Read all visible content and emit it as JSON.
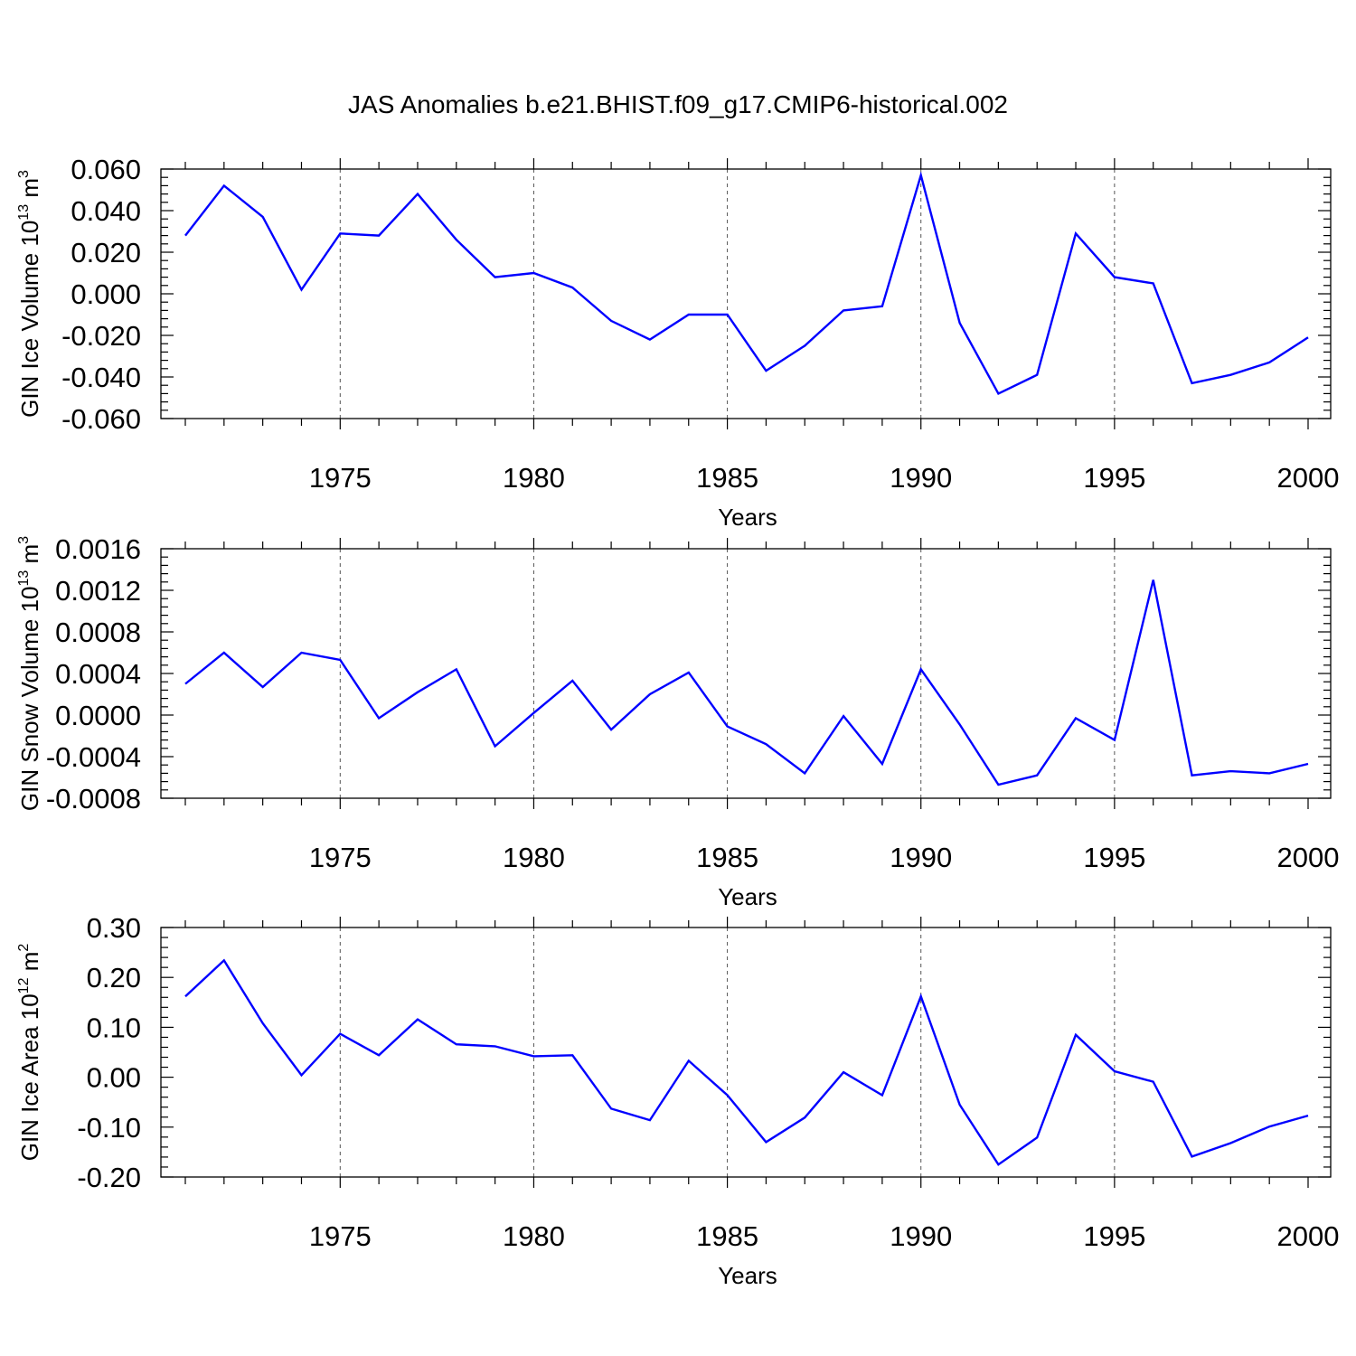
{
  "chart_data": {
    "title": "JAS Anomalies b.e21.BHIST.f09_g17.CMIP6-historical.002",
    "colors": {
      "line": "#0000ff",
      "axes": "#000000",
      "grid": "#555555"
    },
    "panels": [
      {
        "type": "line",
        "xlabel": "Years",
        "ylabel_main": "GIN Ice Volume 10",
        "ylabel_exp": "13",
        "ylabel_unit": " m",
        "ylabel_unit_exp": "3",
        "xlim": [
          1971,
          2000
        ],
        "ylim": [
          -0.06,
          0.06
        ],
        "yticks": [
          -0.06,
          -0.04,
          -0.02,
          0.0,
          0.02,
          0.04,
          0.06
        ],
        "ytick_labels": [
          "-0.060",
          "-0.040",
          "-0.020",
          "0.000",
          "0.020",
          "0.040",
          "0.060"
        ],
        "xticks": [
          1975,
          1980,
          1985,
          1990,
          1995,
          2000
        ],
        "xtick_labels": [
          "1975",
          "1980",
          "1985",
          "1990",
          "1995",
          "2000"
        ],
        "grid": "vertical dashed at major x ticks",
        "series": [
          {
            "x": [
              1971,
              1972,
              1973,
              1974,
              1975,
              1976,
              1977,
              1978,
              1979,
              1980,
              1981,
              1982,
              1983,
              1984,
              1985,
              1986,
              1987,
              1988,
              1989,
              1990,
              1991,
              1992,
              1993,
              1994,
              1995,
              1996,
              1997,
              1998,
              1999,
              2000
            ],
            "values": [
              0.028,
              0.052,
              0.037,
              0.002,
              0.029,
              0.028,
              0.048,
              0.026,
              0.008,
              0.01,
              0.003,
              -0.013,
              -0.022,
              -0.01,
              -0.01,
              -0.037,
              -0.025,
              -0.008,
              -0.006,
              0.057,
              -0.014,
              -0.048,
              -0.039,
              0.029,
              0.008,
              0.005,
              -0.043,
              -0.039,
              -0.033,
              -0.021
            ]
          }
        ]
      },
      {
        "type": "line",
        "xlabel": "Years",
        "ylabel_main": "GIN Snow Volume 10",
        "ylabel_exp": "13",
        "ylabel_unit": " m",
        "ylabel_unit_exp": "3",
        "xlim": [
          1971,
          2000
        ],
        "ylim": [
          -0.0008,
          0.0016
        ],
        "yticks": [
          -0.0008,
          -0.0004,
          0.0,
          0.0004,
          0.0008,
          0.0012,
          0.0016
        ],
        "ytick_labels": [
          "-0.0008",
          "-0.0004",
          "0.0000",
          "0.0004",
          "0.0008",
          "0.0012",
          "0.0016"
        ],
        "xticks": [
          1975,
          1980,
          1985,
          1990,
          1995,
          2000
        ],
        "xtick_labels": [
          "1975",
          "1980",
          "1985",
          "1990",
          "1995",
          "2000"
        ],
        "grid": "vertical dashed at major x ticks",
        "series": [
          {
            "x": [
              1971,
              1972,
              1973,
              1974,
              1975,
              1976,
              1977,
              1978,
              1979,
              1980,
              1981,
              1982,
              1983,
              1984,
              1985,
              1986,
              1987,
              1988,
              1989,
              1990,
              1991,
              1992,
              1993,
              1994,
              1995,
              1996,
              1997,
              1998,
              1999,
              2000
            ],
            "values": [
              0.0003,
              0.0006,
              0.00027,
              0.0006,
              0.00053,
              -3e-05,
              0.00022,
              0.00044,
              -0.0003,
              2e-05,
              0.00033,
              -0.00014,
              0.0002,
              0.00041,
              -0.00011,
              -0.00028,
              -0.00056,
              -1e-05,
              -0.00047,
              0.00044,
              -9e-05,
              -0.00067,
              -0.00058,
              -3e-05,
              -0.00024,
              0.0013,
              -0.00058,
              -0.00054,
              -0.00056,
              -0.00047
            ]
          }
        ]
      },
      {
        "type": "line",
        "xlabel": "Years",
        "ylabel_main": "GIN Ice Area 10",
        "ylabel_exp": "12",
        "ylabel_unit": " m",
        "ylabel_unit_exp": "2",
        "xlim": [
          1971,
          2000
        ],
        "ylim": [
          -0.2,
          0.3
        ],
        "yticks": [
          -0.2,
          -0.1,
          0.0,
          0.1,
          0.2,
          0.3
        ],
        "ytick_labels": [
          "-0.20",
          "-0.10",
          "0.00",
          "0.10",
          "0.20",
          "0.30"
        ],
        "xticks": [
          1975,
          1980,
          1985,
          1990,
          1995,
          2000
        ],
        "xtick_labels": [
          "1975",
          "1980",
          "1985",
          "1990",
          "1995",
          "2000"
        ],
        "grid": "vertical dashed at major x ticks",
        "series": [
          {
            "x": [
              1971,
              1972,
              1973,
              1974,
              1975,
              1976,
              1977,
              1978,
              1979,
              1980,
              1981,
              1982,
              1983,
              1984,
              1985,
              1986,
              1987,
              1988,
              1989,
              1990,
              1991,
              1992,
              1993,
              1994,
              1995,
              1996,
              1997,
              1998,
              1999,
              2000
            ],
            "values": [
              0.162,
              0.234,
              0.108,
              0.004,
              0.087,
              0.044,
              0.116,
              0.066,
              0.062,
              0.042,
              0.044,
              -0.063,
              -0.086,
              0.033,
              -0.036,
              -0.13,
              -0.081,
              0.01,
              -0.036,
              0.162,
              -0.055,
              -0.175,
              -0.121,
              0.085,
              0.012,
              -0.009,
              -0.159,
              -0.132,
              -0.099,
              -0.077
            ]
          }
        ]
      }
    ]
  }
}
